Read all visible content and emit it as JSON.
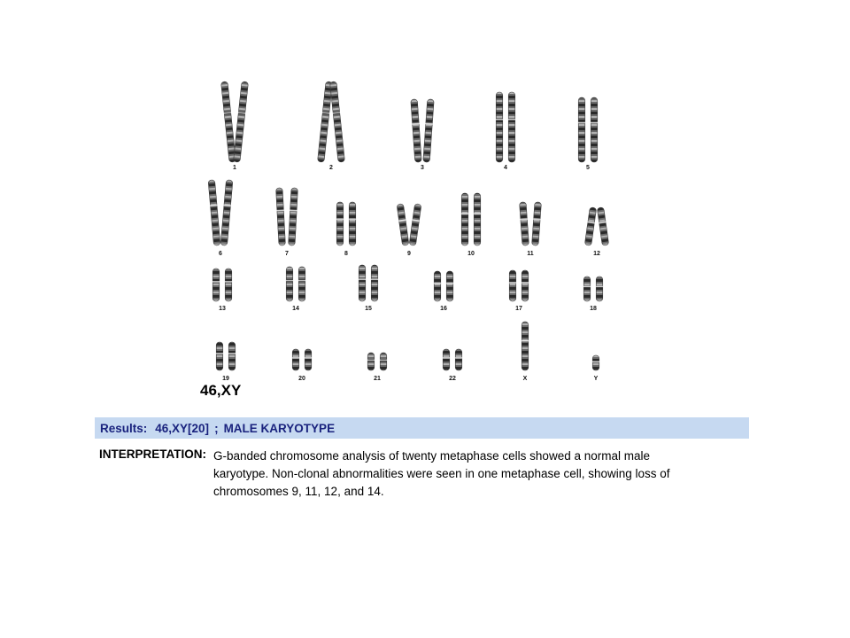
{
  "karyotype": {
    "title": "46,XY",
    "chromosome_labels": [
      "1",
      "2",
      "3",
      "4",
      "5",
      "6",
      "7",
      "8",
      "9",
      "10",
      "11",
      "12",
      "13",
      "14",
      "15",
      "16",
      "17",
      "18",
      "19",
      "20",
      "21",
      "22",
      "X",
      "Y"
    ]
  },
  "results": {
    "label": "Results:",
    "karyotype": "46,XY[20]",
    "separator": ";",
    "summary": "MALE KARYOTYPE"
  },
  "interpretation": {
    "label": "INTERPRETATION:",
    "lines": [
      "G-banded chromosome analysis of twenty metaphase cells showed a normal male",
      "karyotype. Non-clonal abnormalities were seen in one metaphase cell, showing loss of",
      "chromosomes 9, 11, 12, and 14."
    ]
  },
  "colors": {
    "results_bar": "#c6d9f1",
    "results_text": "#1a237e"
  }
}
